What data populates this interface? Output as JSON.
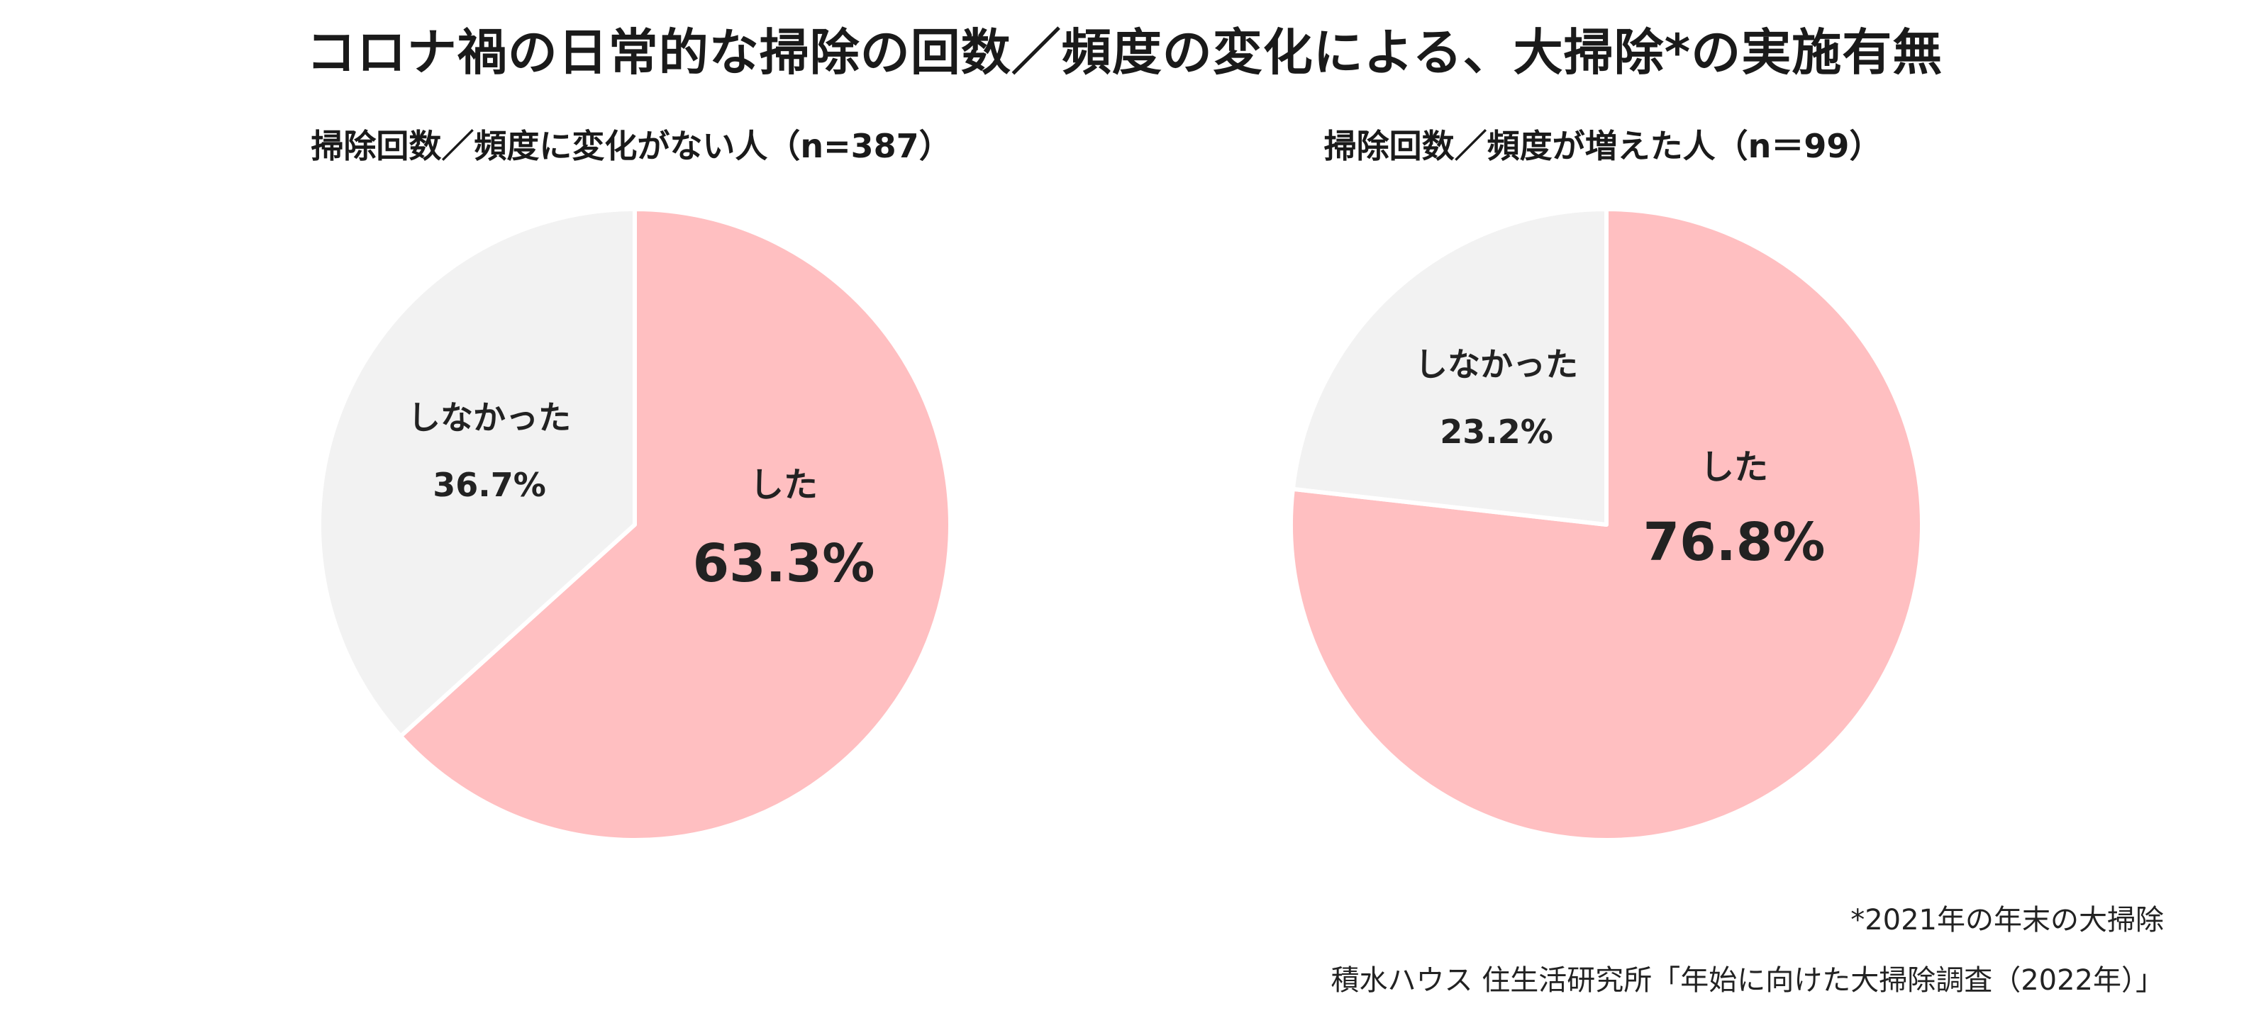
{
  "title": "コロナ禍の日常的な掃除の回数／頻度の変化による、大掃除*の実施有無",
  "chart_data": [
    {
      "type": "pie",
      "title": "掃除回数／頻度に変化がない人（n=387）",
      "slices": [
        {
          "label": "した",
          "value": 63.3,
          "display": "63.3%",
          "color": "#ffbfc1"
        },
        {
          "label": "しなかった",
          "value": 36.7,
          "display": "36.7%",
          "color": "#f2f2f2"
        }
      ],
      "start": "top",
      "direction": "clockwise"
    },
    {
      "type": "pie",
      "title": "掃除回数／頻度が増えた人（n＝99）",
      "slices": [
        {
          "label": "した",
          "value": 76.8,
          "display": "76.8%",
          "color": "#ffbfc1"
        },
        {
          "label": "しなかった",
          "value": 23.2,
          "display": "23.2%",
          "color": "#f2f2f2"
        }
      ],
      "start": "top",
      "direction": "clockwise"
    }
  ],
  "footnote": "*2021年の年末の大掃除",
  "source": "積水ハウス 住生活研究所「年始に向けた大掃除調査（2022年）」",
  "colors": {
    "slice_border": "#ffffff",
    "label_text": "#222222"
  }
}
